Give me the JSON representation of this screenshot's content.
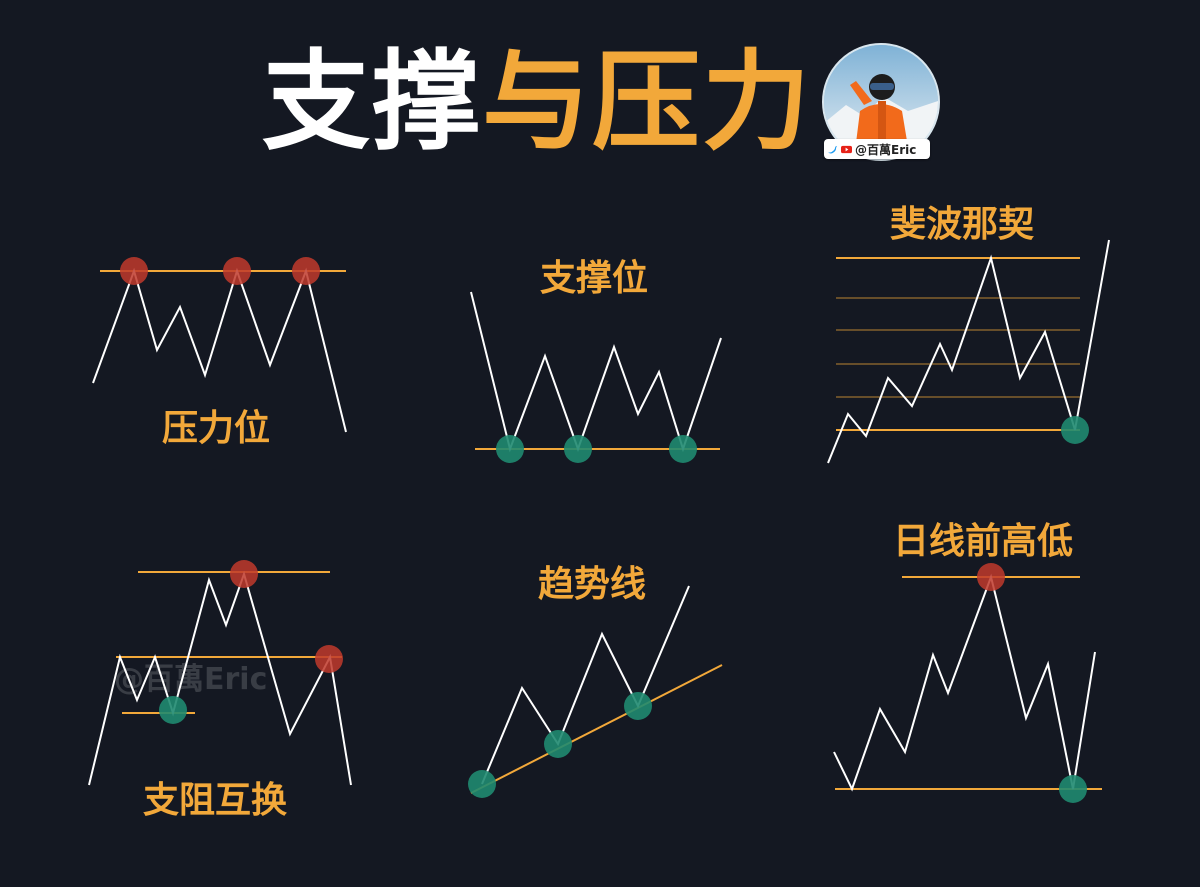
{
  "title": {
    "part1": "支撑",
    "part2": "与压力"
  },
  "badge": {
    "handle": "@百萬Eric",
    "icons": [
      "twitter-icon",
      "youtube-icon"
    ]
  },
  "watermark": "@百萬Eric",
  "colors": {
    "background": "#141822",
    "accent": "#f2a83a",
    "line": "#ffffff",
    "resistance_dot": "#c0392b",
    "support_dot": "#1f8a70"
  },
  "panels": [
    {
      "label": "压力位"
    },
    {
      "label": "支撑位"
    },
    {
      "label": "斐波那契"
    },
    {
      "label": "支阻互换"
    },
    {
      "label": "趋势线"
    },
    {
      "label": "日线前高低"
    }
  ]
}
